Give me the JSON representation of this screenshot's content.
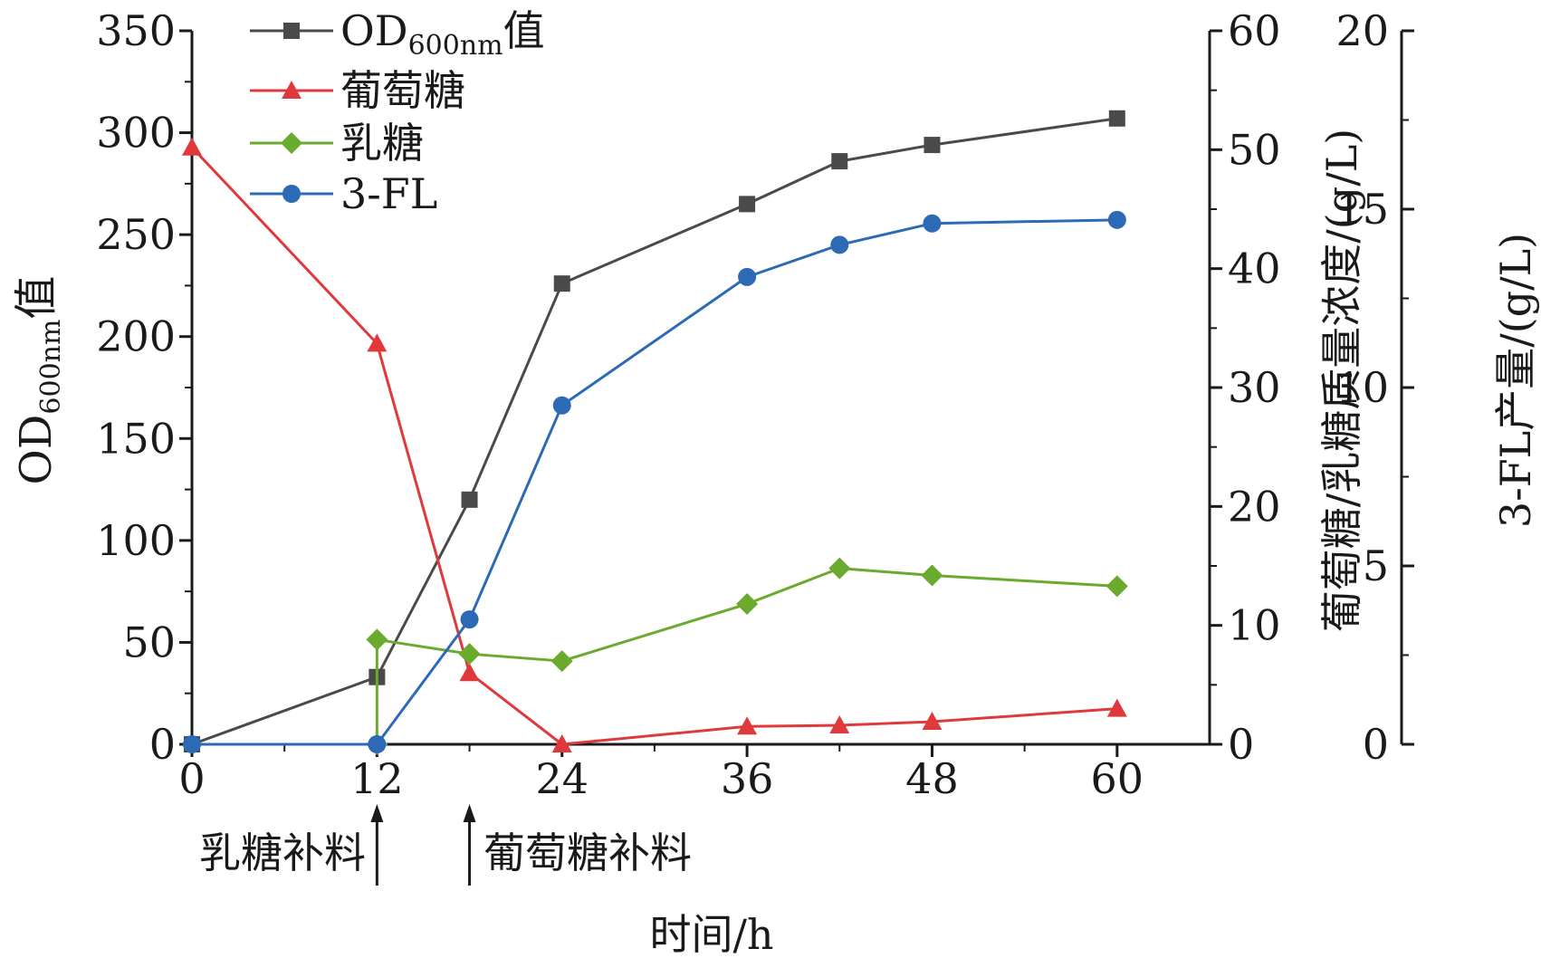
{
  "chart_data": {
    "type": "line",
    "x": [
      0,
      12,
      18,
      24,
      36,
      42,
      48,
      60
    ],
    "xticks": [
      0,
      12,
      24,
      36,
      48,
      60
    ],
    "xlim": [
      0,
      66
    ],
    "xlabel": "时间/h",
    "axes": {
      "left": {
        "title_main": "OD",
        "title_sub": "600nm",
        "title_tail": "值",
        "ylim": [
          0,
          350
        ],
        "ticks": [
          0,
          50,
          100,
          150,
          200,
          250,
          300,
          350
        ]
      },
      "right1": {
        "title": "葡萄糖/乳糖质量浓度/(g/L)",
        "ylim": [
          0,
          60
        ],
        "ticks": [
          0,
          10,
          20,
          30,
          40,
          50,
          60
        ]
      },
      "right2": {
        "title": "3-FL产量/(g/L)",
        "ylim": [
          0,
          20
        ],
        "ticks": [
          0,
          5,
          10,
          15,
          20
        ]
      }
    },
    "series": [
      {
        "id": "od",
        "name_main": "OD",
        "name_sub": "600nm",
        "name_tail": "值",
        "axis": "left",
        "marker": "square",
        "color": "#4a4a4a",
        "x": [
          0,
          12,
          18,
          24,
          36,
          42,
          48,
          60
        ],
        "values": [
          0,
          33,
          120,
          226,
          265,
          286,
          294,
          307
        ]
      },
      {
        "id": "glucose",
        "name": "葡萄糖",
        "axis": "right1",
        "marker": "triangle",
        "color": "#e0393c",
        "x": [
          0,
          12,
          18,
          24,
          36,
          42,
          48,
          60
        ],
        "values": [
          50.2,
          33.7,
          6.0,
          0.0,
          1.5,
          1.6,
          1.9,
          3.0
        ]
      },
      {
        "id": "lactose",
        "name": "乳糖",
        "axis": "right1",
        "marker": "diamond",
        "color": "#6aaa2c",
        "x": [
          12,
          12,
          18,
          24,
          36,
          42,
          48,
          60
        ],
        "values": [
          0,
          8.8,
          7.6,
          7.0,
          11.8,
          14.8,
          14.2,
          13.3
        ]
      },
      {
        "id": "fl",
        "name": "3-FL",
        "axis": "right2",
        "marker": "circle",
        "color": "#2d6ab5",
        "x": [
          0,
          12,
          18,
          24,
          36,
          42,
          48,
          60
        ],
        "values": [
          0,
          0,
          3.5,
          9.5,
          13.1,
          14.0,
          14.6,
          14.7
        ]
      }
    ],
    "annotations": [
      {
        "id": "lactose-feed",
        "text": "乳糖补料",
        "x": 12
      },
      {
        "id": "glucose-feed",
        "text": "葡萄糖补料",
        "x": 18
      }
    ]
  }
}
